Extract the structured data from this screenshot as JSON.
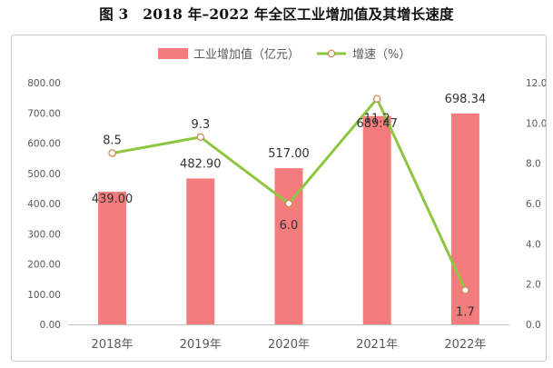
{
  "figure_title": "图 3　2018 年–2022 年全区工业增加值及其增长速度",
  "chart_data": {
    "type": "bar+line",
    "title": "图 3　2018 年–2022 年全区工业增加值及其增长速度",
    "categories": [
      "2018年",
      "2019年",
      "2020年",
      "2021年",
      "2022年"
    ],
    "series": [
      {
        "name": "工业增加值（亿元）",
        "type": "bar",
        "axis": "left",
        "color": "#f47c7c",
        "values": [
          439.0,
          482.9,
          517.0,
          689.47,
          698.34
        ],
        "labels": [
          "439.00",
          "482.90",
          "517.00",
          "689.47",
          "698.34"
        ]
      },
      {
        "name": "增速（%）",
        "type": "line",
        "axis": "right",
        "color": "#8dc63f",
        "marker_fill": "#ffffff",
        "marker_stroke": "#d0875a",
        "values": [
          8.5,
          9.3,
          6.0,
          11.2,
          1.7
        ],
        "labels": [
          "8.5",
          "9.3",
          "6.0",
          "11.2",
          "1.7"
        ]
      }
    ],
    "y_left": {
      "range": [
        0,
        800
      ],
      "ticks": [
        0,
        100,
        200,
        300,
        400,
        500,
        600,
        700,
        800
      ],
      "tick_labels": [
        "0.00",
        "100.00",
        "200.00",
        "300.00",
        "400.00",
        "500.00",
        "600.00",
        "700.00",
        "800.00"
      ]
    },
    "y_right": {
      "range": [
        0,
        12
      ],
      "ticks": [
        0,
        2,
        4,
        6,
        8,
        10,
        12
      ],
      "tick_labels": [
        "0.0",
        "2.0",
        "4.0",
        "6.0",
        "8.0",
        "10.0",
        "12.0"
      ]
    },
    "grid": false,
    "legend_position": "top-center",
    "colors": {
      "axis_text": "#595959",
      "label_text": "#333333",
      "axis_line": "#bfbfbf"
    }
  }
}
